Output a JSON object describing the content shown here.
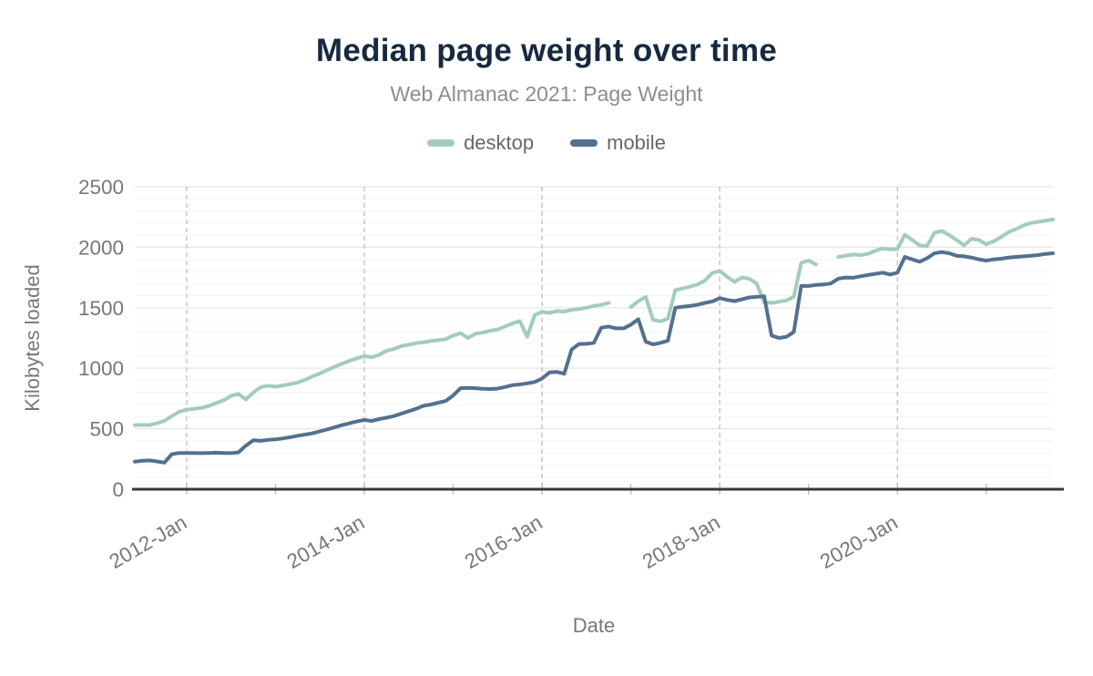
{
  "header": {
    "title": "Median page weight over time",
    "subtitle": "Web Almanac 2021: Page Weight"
  },
  "legend": [
    {
      "label": "desktop",
      "color": "#a3ccba"
    },
    {
      "label": "mobile",
      "color": "#54708e"
    }
  ],
  "axes": {
    "x_label": "Date",
    "y_label": "Kilobytes loaded"
  },
  "colors": {
    "title": "#16293f",
    "subtitle": "#8a8e92",
    "axis_text": "#75787b",
    "axis_line": "#37383a",
    "grid_major": "#e5e5e5",
    "grid_minor": "#f4f4f4",
    "grid_dashed": "#c9c9c9",
    "desktop_line": "#a3ccba",
    "mobile_line": "#54708e"
  },
  "chart_data": {
    "type": "line",
    "title": "Median page weight over time",
    "subtitle": "Web Almanac 2021: Page Weight",
    "xlabel": "Date",
    "ylabel": "Kilobytes loaded",
    "ylim": [
      0,
      2500
    ],
    "yticks": [
      0,
      500,
      1000,
      1500,
      2000,
      2500
    ],
    "grid": {
      "h_minor_step": 100,
      "h_major_step": 500,
      "v_dashed_at_xticks": true
    },
    "legend_position": "top",
    "xticks": [
      {
        "month": "2012-01",
        "label": "2012-Jan"
      },
      {
        "month": "2014-01",
        "label": "2014-Jan"
      },
      {
        "month": "2016-01",
        "label": "2016-Jan"
      },
      {
        "month": "2018-01",
        "label": "2018-Jan"
      },
      {
        "month": "2020-01",
        "label": "2020-Jan"
      }
    ],
    "x": [
      "2011-06",
      "2011-07",
      "2011-08",
      "2011-09",
      "2011-10",
      "2011-11",
      "2011-12",
      "2012-01",
      "2012-02",
      "2012-03",
      "2012-04",
      "2012-05",
      "2012-06",
      "2012-07",
      "2012-08",
      "2012-09",
      "2012-10",
      "2012-11",
      "2012-12",
      "2013-01",
      "2013-02",
      "2013-03",
      "2013-04",
      "2013-05",
      "2013-06",
      "2013-07",
      "2013-08",
      "2013-09",
      "2013-10",
      "2013-11",
      "2013-12",
      "2014-01",
      "2014-02",
      "2014-03",
      "2014-04",
      "2014-05",
      "2014-06",
      "2014-07",
      "2014-08",
      "2014-09",
      "2014-10",
      "2014-11",
      "2014-12",
      "2015-01",
      "2015-02",
      "2015-03",
      "2015-04",
      "2015-05",
      "2015-06",
      "2015-07",
      "2015-08",
      "2015-09",
      "2015-10",
      "2015-11",
      "2015-12",
      "2016-01",
      "2016-02",
      "2016-03",
      "2016-04",
      "2016-05",
      "2016-06",
      "2016-07",
      "2016-08",
      "2016-09",
      "2016-10",
      "2016-11",
      "2016-12",
      "2017-01",
      "2017-02",
      "2017-03",
      "2017-04",
      "2017-05",
      "2017-06",
      "2017-07",
      "2017-08",
      "2017-09",
      "2017-10",
      "2017-11",
      "2017-12",
      "2018-01",
      "2018-02",
      "2018-03",
      "2018-04",
      "2018-05",
      "2018-06",
      "2018-07",
      "2018-08",
      "2018-09",
      "2018-10",
      "2018-11",
      "2018-12",
      "2019-01",
      "2019-02",
      "2019-03",
      "2019-04",
      "2019-05",
      "2019-06",
      "2019-07",
      "2019-08",
      "2019-09",
      "2019-10",
      "2019-11",
      "2019-12",
      "2020-01",
      "2020-02",
      "2020-03",
      "2020-04",
      "2020-05",
      "2020-06",
      "2020-07",
      "2020-08",
      "2020-09",
      "2020-10",
      "2020-11",
      "2020-12",
      "2021-01",
      "2021-02",
      "2021-03",
      "2021-04",
      "2021-05",
      "2021-06",
      "2021-07",
      "2021-08",
      "2021-09",
      "2021-10"
    ],
    "series": [
      {
        "name": "desktop",
        "color": "#a3ccba",
        "values": [
          530,
          532,
          530,
          545,
          565,
          605,
          640,
          658,
          665,
          672,
          688,
          712,
          735,
          772,
          788,
          742,
          800,
          843,
          856,
          848,
          858,
          868,
          882,
          905,
          932,
          956,
          985,
          1012,
          1038,
          1062,
          1082,
          1100,
          1092,
          1110,
          1145,
          1160,
          1182,
          1195,
          1207,
          1215,
          1225,
          1232,
          1240,
          1270,
          1290,
          1250,
          1285,
          1295,
          1310,
          1320,
          1346,
          1370,
          1390,
          1260,
          1440,
          1465,
          1457,
          1472,
          1468,
          1482,
          1490,
          1500,
          1515,
          1523,
          1540,
          null,
          null,
          1505,
          1555,
          1590,
          1400,
          1388,
          1410,
          1645,
          1660,
          1675,
          1692,
          1725,
          1788,
          1805,
          1755,
          1715,
          1750,
          1740,
          1700,
          1545,
          1540,
          1550,
          1560,
          1590,
          1870,
          1890,
          1858,
          null,
          null,
          1920,
          1930,
          1940,
          1935,
          1945,
          1970,
          1990,
          1983,
          1985,
          2105,
          2060,
          2015,
          2010,
          2120,
          2135,
          2100,
          2060,
          2015,
          2070,
          2060,
          2025,
          2050,
          2085,
          2125,
          2150,
          2180,
          2200,
          2210,
          2220,
          2230
        ]
      },
      {
        "name": "mobile",
        "color": "#54708e",
        "values": [
          228,
          235,
          238,
          230,
          220,
          290,
          300,
          300,
          300,
          298,
          300,
          302,
          300,
          298,
          305,
          360,
          405,
          400,
          408,
          412,
          420,
          430,
          442,
          452,
          462,
          478,
          495,
          512,
          530,
          545,
          560,
          572,
          565,
          580,
          592,
          605,
          625,
          645,
          665,
          690,
          700,
          715,
          730,
          775,
          835,
          838,
          835,
          830,
          828,
          831,
          845,
          860,
          866,
          875,
          886,
          915,
          965,
          970,
          955,
          1155,
          1200,
          1202,
          1210,
          1335,
          1345,
          1330,
          1330,
          1360,
          1405,
          1220,
          1197,
          1210,
          1228,
          1500,
          1508,
          1515,
          1525,
          1540,
          1552,
          1580,
          1565,
          1555,
          1570,
          1585,
          1590,
          1595,
          1270,
          1250,
          1260,
          1300,
          1680,
          1680,
          1688,
          1692,
          1700,
          1740,
          1750,
          1748,
          1760,
          1770,
          1780,
          1790,
          1775,
          1790,
          1920,
          1900,
          1880,
          1910,
          1950,
          1960,
          1950,
          1930,
          1925,
          1915,
          1900,
          1890,
          1900,
          1905,
          1915,
          1920,
          1925,
          1930,
          1935,
          1945,
          1950
        ]
      }
    ]
  }
}
